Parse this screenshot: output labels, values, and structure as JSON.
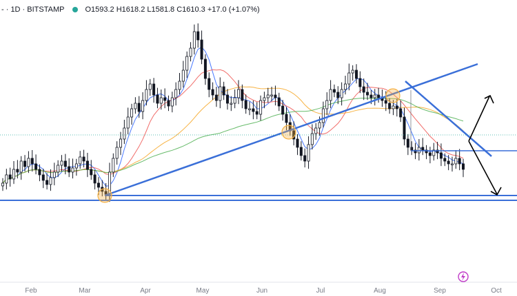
{
  "header": {
    "symbol": "- · 1D · BITSTAMP",
    "ohlc": "O1593.2 H1618.2 L1581.8 C1610.3 +17.0 (+1.07%)"
  },
  "icons": {
    "flash": "lightning-icon"
  },
  "colors": {
    "up": "#131722",
    "down": "#131722",
    "trendline": "#3a6fd8",
    "marker": "#f5b041",
    "ma_fast": "#2962ff",
    "ma_mid": "#ef5350",
    "ma_slow": "#f6a623",
    "ma_long": "#4caf50"
  },
  "chart_data": {
    "type": "candlestick",
    "x_tick_labels": [
      "Feb",
      "Mar",
      "Apr",
      "May",
      "Jun",
      "Jul",
      "Aug",
      "Sep",
      "Oct"
    ],
    "close_series": [
      1560,
      1590,
      1575,
      1610,
      1600,
      1640,
      1620,
      1650,
      1630,
      1610,
      1590,
      1570,
      1555,
      1580,
      1600,
      1625,
      1640,
      1620,
      1600,
      1615,
      1630,
      1655,
      1640,
      1610,
      1590,
      1560,
      1545,
      1530,
      1520,
      1600,
      1650,
      1690,
      1720,
      1760,
      1800,
      1830,
      1850,
      1820,
      1860,
      1900,
      1920,
      1880,
      1850,
      1870,
      1860,
      1840,
      1870,
      1900,
      1930,
      1970,
      2020,
      2050,
      2110,
      2080,
      2010,
      1940,
      1900,
      1880,
      1860,
      1910,
      1880,
      1850,
      1850,
      1870,
      1900,
      1860,
      1830,
      1830,
      1820,
      1810,
      1860,
      1870,
      1880,
      1880,
      1870,
      1840,
      1810,
      1780,
      1750,
      1720,
      1690,
      1660,
      1640,
      1700,
      1740,
      1760,
      1780,
      1830,
      1860,
      1900,
      1890,
      1870,
      1900,
      1920,
      1960,
      1970,
      1940,
      1910,
      1890,
      1880,
      1870,
      1880,
      1870,
      1860,
      1850,
      1830,
      1840,
      1830,
      1800,
      1720,
      1690,
      1680,
      1670,
      1690,
      1680,
      1670,
      1660,
      1680,
      1670,
      1650,
      1640,
      1630,
      1630,
      1650,
      1630,
      1610
    ],
    "events": [
      "Feb",
      "Mar",
      "Apr",
      "May",
      "Jun",
      "Jul",
      "Aug",
      "Sep",
      "Oct"
    ],
    "annotations": [
      "support-circle-mar",
      "support-circle-jun",
      "support-circle-aug"
    ]
  }
}
